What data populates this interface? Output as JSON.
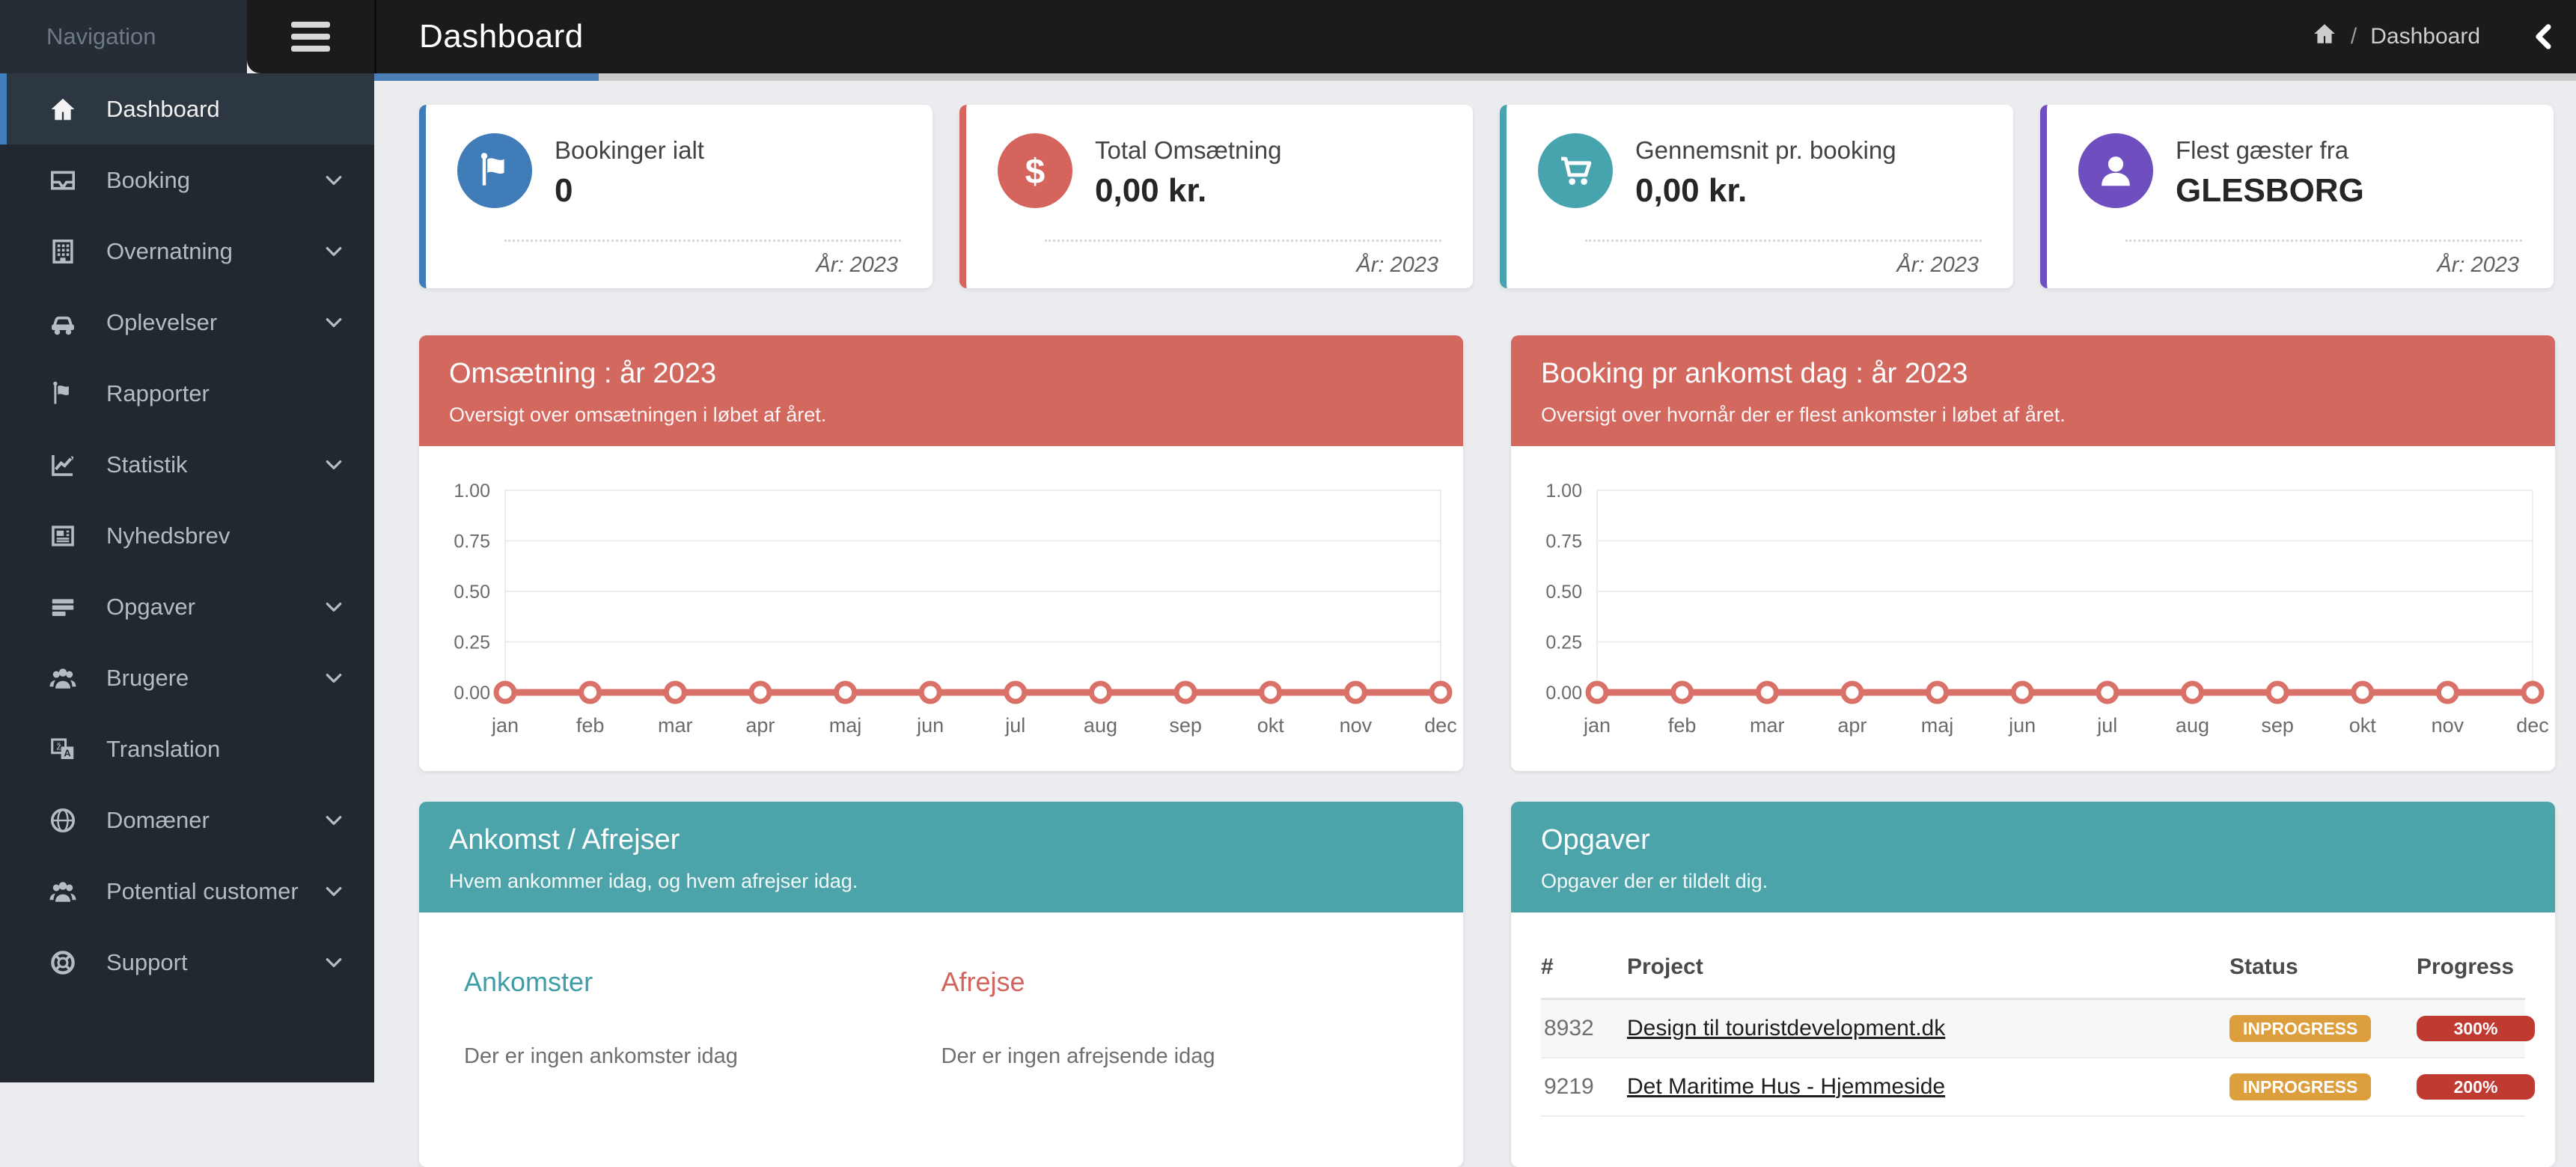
{
  "app": {
    "nav_label": "Navigation"
  },
  "header": {
    "title": "Dashboard",
    "breadcrumb": {
      "separator": "/",
      "current": "Dashboard"
    }
  },
  "sidebar": {
    "items": [
      {
        "label": "Dashboard",
        "icon": "home-icon",
        "active": true,
        "expandable": false
      },
      {
        "label": "Booking",
        "icon": "inbox-icon",
        "active": false,
        "expandable": true
      },
      {
        "label": "Overnatning",
        "icon": "building-icon",
        "active": false,
        "expandable": true
      },
      {
        "label": "Oplevelser",
        "icon": "car-icon",
        "active": false,
        "expandable": true
      },
      {
        "label": "Rapporter",
        "icon": "flag-icon",
        "active": false,
        "expandable": false
      },
      {
        "label": "Statistik",
        "icon": "chart-line-icon",
        "active": false,
        "expandable": true
      },
      {
        "label": "Nyhedsbrev",
        "icon": "newspaper-icon",
        "active": false,
        "expandable": false
      },
      {
        "label": "Opgaver",
        "icon": "tasks-icon",
        "active": false,
        "expandable": true
      },
      {
        "label": "Brugere",
        "icon": "users-icon",
        "active": false,
        "expandable": true
      },
      {
        "label": "Translation",
        "icon": "translation-icon",
        "active": false,
        "expandable": false
      },
      {
        "label": "Domæner",
        "icon": "globe-icon",
        "active": false,
        "expandable": true
      },
      {
        "label": "Potential customer",
        "icon": "users-icon",
        "active": false,
        "expandable": true
      },
      {
        "label": "Support",
        "icon": "life-ring-icon",
        "active": false,
        "expandable": true
      }
    ]
  },
  "stats": [
    {
      "label": "Bookinger ialt",
      "value": "0",
      "year": "År: 2023",
      "icon": "flag-white-icon",
      "color": "#3f7cb8"
    },
    {
      "label": "Total Omsætning",
      "value": "0,00 kr.",
      "year": "År: 2023",
      "icon": "dollar-icon",
      "color": "#d5645c"
    },
    {
      "label": "Gennemsnit pr. booking",
      "value": "0,00 kr.",
      "year": "År: 2023",
      "icon": "cart-icon",
      "color": "#47a4af"
    },
    {
      "label": "Flest gæster fra",
      "value": "GLESBORG",
      "year": "År: 2023",
      "icon": "user-white-icon",
      "color": "#6f4ec0"
    }
  ],
  "chart_data": [
    {
      "type": "line",
      "title": "Omsætning : år 2023",
      "subtitle": "Oversigt over omsætningen i løbet af året.",
      "categories": [
        "jan",
        "feb",
        "mar",
        "apr",
        "maj",
        "jun",
        "jul",
        "aug",
        "sep",
        "okt",
        "nov",
        "dec"
      ],
      "values": [
        0,
        0,
        0,
        0,
        0,
        0,
        0,
        0,
        0,
        0,
        0,
        0
      ],
      "ylim": [
        0,
        1
      ],
      "ytick_labels": [
        "1.00",
        "0.75",
        "0.50",
        "0.25",
        "0.00"
      ],
      "grid": true,
      "legend": "none",
      "line_color": "#d97168"
    },
    {
      "type": "line",
      "title": "Booking pr ankomst dag : år 2023",
      "subtitle": "Oversigt over hvornår der er flest ankomster i løbet af året.",
      "categories": [
        "jan",
        "feb",
        "mar",
        "apr",
        "maj",
        "jun",
        "jul",
        "aug",
        "sep",
        "okt",
        "nov",
        "dec"
      ],
      "values": [
        0,
        0,
        0,
        0,
        0,
        0,
        0,
        0,
        0,
        0,
        0,
        0
      ],
      "ylim": [
        0,
        1
      ],
      "ytick_labels": [
        "1.00",
        "0.75",
        "0.50",
        "0.25",
        "0.00"
      ],
      "grid": true,
      "legend": "none",
      "line_color": "#d97168"
    }
  ],
  "arrivals": {
    "title": "Ankomst / Afrejser",
    "subtitle": "Hvem ankommer idag, og hvem afrejser idag.",
    "columns": [
      {
        "heading": "Ankomster",
        "empty_text": "Der er ingen ankomster idag",
        "color": "#3f9da7"
      },
      {
        "heading": "Afrejse",
        "empty_text": "Der er ingen afrejsende idag",
        "color": "#d2655c"
      }
    ]
  },
  "tasks": {
    "title": "Opgaver",
    "subtitle": "Opgaver der er tildelt dig.",
    "headers": [
      "#",
      "Project",
      "Status",
      "Progress"
    ],
    "rows": [
      {
        "id": "8932",
        "project": "Design til touristdevelopment.dk",
        "status": "INPROGRESS",
        "progress": "300%"
      },
      {
        "id": "9219",
        "project": "Det Maritime Hus - Hjemmeside",
        "status": "INPROGRESS",
        "progress": "200%"
      }
    ]
  },
  "colors": {
    "accent_blue": "#4a80b5",
    "panel_coral": "#d3685f",
    "panel_teal": "#4ca4aa",
    "badge_orange": "#dd9f3e",
    "badge_red": "#bf3a31",
    "sidebar_bg": "#212830",
    "header_bg": "#1a1b1d"
  }
}
